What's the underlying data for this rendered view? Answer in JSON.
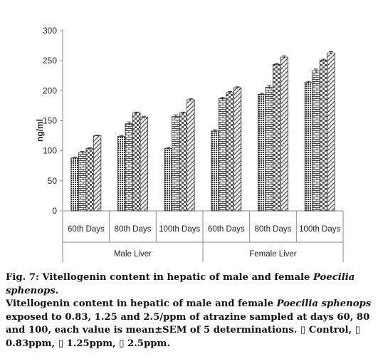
{
  "chart_data": {
    "type": "bar",
    "ylabel": "ng/ml",
    "yticks": [
      0,
      50,
      100,
      150,
      200,
      250,
      300
    ],
    "ylim": [
      0,
      300
    ],
    "grid": false,
    "legend": "none",
    "groups": [
      {
        "label": "Male Liver",
        "categories": [
          "60th Days",
          "80th Days",
          "100th Days"
        ]
      },
      {
        "label": "Female Liver",
        "categories": [
          "60th Days",
          "80th Days",
          "100th Days"
        ]
      }
    ],
    "categories": [
      "60th Days",
      "80th Days",
      "100th Days",
      "60th Days",
      "80th Days",
      "100th Days"
    ],
    "series": [
      {
        "name": "Control",
        "pattern": "dots",
        "values": [
          88,
          124,
          104,
          133,
          194,
          214
        ],
        "err": [
          1.5,
          1.5,
          1.5,
          2,
          1.5,
          1.5
        ]
      },
      {
        "name": "0.83ppm",
        "pattern": "brick",
        "values": [
          97,
          145,
          157,
          187,
          206,
          233
        ],
        "err": [
          2,
          3,
          3,
          2,
          3,
          3
        ]
      },
      {
        "name": "1.25ppm",
        "pattern": "checker",
        "values": [
          104,
          163,
          163,
          197,
          244,
          251
        ],
        "err": [
          1.5,
          1.5,
          1.5,
          1.5,
          1.5,
          1.5
        ]
      },
      {
        "name": "2.5ppm",
        "pattern": "diag",
        "values": [
          125,
          156,
          185,
          205,
          256,
          263
        ],
        "err": [
          1,
          1.5,
          1.5,
          1.5,
          2,
          2
        ]
      }
    ]
  },
  "caption": {
    "title_prefix": "Fig. 7: Vitellogenin content in hepatic of male and female ",
    "title_species": "Poecilia sphenops",
    "title_suffix": ".",
    "desc_prefix": "Vitellogenin content in hepatic of male and female ",
    "desc_species": "Poecilia sphenops",
    "desc_suffix": " exposed to 0.83, 1.25 and 2.5/ppm of atrazine sampled at days 60, 80 and 100, each value is mean±SEM of 5 determinations. ",
    "legend_items": [
      "Control,",
      "0.83ppm,",
      "1.25ppm,",
      "2.5ppm."
    ],
    "legend_marker": "▯"
  }
}
